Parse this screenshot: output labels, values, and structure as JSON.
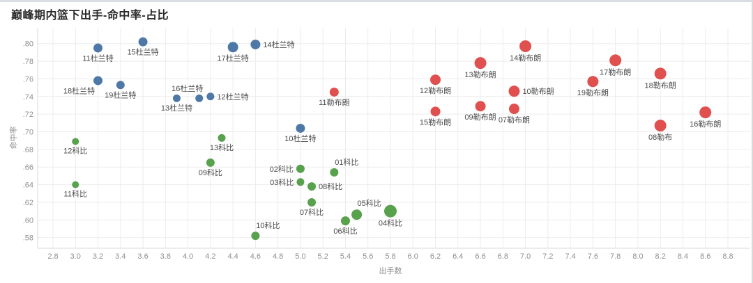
{
  "chart_data": {
    "type": "scatter",
    "title": "巅峰期内篮下出手-命中率-占比",
    "xlabel": "出手数",
    "ylabel": "命中率",
    "xlim": [
      2.7,
      8.9
    ],
    "ylim": [
      0.57,
      0.81
    ],
    "grid": true,
    "legend": "none (labels attached to each point)",
    "x_ticks": [
      "2.8",
      "3.0",
      "3.2",
      "3.4",
      "3.6",
      "3.8",
      "4.0",
      "4.2",
      "4.4",
      "4.6",
      "4.8",
      "5.0",
      "5.2",
      "5.4",
      "5.6",
      "5.8",
      "6.0",
      "6.2",
      "6.4",
      "6.6",
      "6.8",
      "7.0",
      "7.2",
      "7.4",
      "7.6",
      "7.8",
      "8.0",
      "8.2",
      "8.4",
      "8.6",
      "8.8"
    ],
    "y_ticks": [
      ".58",
      ".60",
      ".62",
      ".64",
      ".66",
      ".68",
      ".70",
      ".72",
      ".74",
      ".76",
      ".78",
      ".80"
    ],
    "colors": {
      "durant_blue": "#4e79a7",
      "lebron_red": "#e0504f",
      "kobe_green": "#58a14d",
      "grid": "#ececec",
      "axis_line": "#d8d8d8",
      "tick_text": "#8f8f8f",
      "point_label_text": "#4a4a4a",
      "title_text": "#2b2b2b"
    },
    "series": [
      {
        "name": "杜兰特",
        "color": "#4e79a7",
        "points": [
          {
            "label": "11杜兰特",
            "x": 3.2,
            "y": 0.795,
            "size": 13,
            "label_pos": "below"
          },
          {
            "label": "15杜兰特",
            "x": 3.6,
            "y": 0.802,
            "size": 13,
            "label_pos": "below"
          },
          {
            "label": "17杜兰特",
            "x": 4.4,
            "y": 0.796,
            "size": 15,
            "label_pos": "below"
          },
          {
            "label": "14杜兰特",
            "x": 4.6,
            "y": 0.799,
            "size": 14,
            "label_pos": "right"
          },
          {
            "label": "18杜兰特",
            "x": 3.2,
            "y": 0.758,
            "size": 13,
            "label_pos": "below-left"
          },
          {
            "label": "19杜兰特",
            "x": 3.4,
            "y": 0.753,
            "size": 12,
            "label_pos": "below"
          },
          {
            "label": "13杜兰特",
            "x": 3.9,
            "y": 0.738,
            "size": 11,
            "label_pos": "below"
          },
          {
            "label": "16杜兰特",
            "x": 4.1,
            "y": 0.738,
            "size": 11,
            "label_pos": "above-left"
          },
          {
            "label": "12杜兰特",
            "x": 4.2,
            "y": 0.74,
            "size": 11,
            "label_pos": "right"
          },
          {
            "label": "10杜兰特",
            "x": 5.0,
            "y": 0.704,
            "size": 13,
            "label_pos": "below"
          }
        ]
      },
      {
        "name": "勒布朗",
        "color": "#e0504f",
        "points": [
          {
            "label": "11勒布朗",
            "x": 5.3,
            "y": 0.745,
            "size": 13,
            "label_pos": "below"
          },
          {
            "label": "12勒布朗",
            "x": 6.2,
            "y": 0.759,
            "size": 15,
            "label_pos": "below"
          },
          {
            "label": "15勒布朗",
            "x": 6.2,
            "y": 0.723,
            "size": 14,
            "label_pos": "below"
          },
          {
            "label": "13勒布朗",
            "x": 6.6,
            "y": 0.778,
            "size": 17,
            "label_pos": "below"
          },
          {
            "label": "09勒布朗",
            "x": 6.6,
            "y": 0.729,
            "size": 15,
            "label_pos": "below"
          },
          {
            "label": "14勒布朗",
            "x": 7.0,
            "y": 0.797,
            "size": 17,
            "label_pos": "below"
          },
          {
            "label": "10勒布朗",
            "x": 6.9,
            "y": 0.746,
            "size": 16,
            "label_pos": "right"
          },
          {
            "label": "07勒布朗",
            "x": 6.9,
            "y": 0.726,
            "size": 15,
            "label_pos": "below"
          },
          {
            "label": "17勒布朗",
            "x": 7.8,
            "y": 0.781,
            "size": 17,
            "label_pos": "below"
          },
          {
            "label": "19勒布朗",
            "x": 7.6,
            "y": 0.757,
            "size": 16,
            "label_pos": "below"
          },
          {
            "label": "18勒布朗",
            "x": 8.2,
            "y": 0.766,
            "size": 17,
            "label_pos": "below"
          },
          {
            "label": "08勒布",
            "x": 8.2,
            "y": 0.707,
            "size": 17,
            "label_pos": "below"
          },
          {
            "label": "16勒布朗",
            "x": 8.6,
            "y": 0.722,
            "size": 17,
            "label_pos": "below"
          }
        ]
      },
      {
        "name": "科比",
        "color": "#58a14d",
        "points": [
          {
            "label": "12科比",
            "x": 3.0,
            "y": 0.689,
            "size": 10,
            "label_pos": "below"
          },
          {
            "label": "11科比",
            "x": 3.0,
            "y": 0.64,
            "size": 10,
            "label_pos": "below"
          },
          {
            "label": "13科比",
            "x": 4.3,
            "y": 0.693,
            "size": 11,
            "label_pos": "below"
          },
          {
            "label": "09科比",
            "x": 4.2,
            "y": 0.665,
            "size": 12,
            "label_pos": "below"
          },
          {
            "label": "02科比",
            "x": 5.0,
            "y": 0.658,
            "size": 12,
            "label_pos": "left"
          },
          {
            "label": "01科比",
            "x": 5.3,
            "y": 0.654,
            "size": 12,
            "label_pos": "above-right"
          },
          {
            "label": "03科比",
            "x": 5.0,
            "y": 0.643,
            "size": 11,
            "label_pos": "left"
          },
          {
            "label": "08科比",
            "x": 5.1,
            "y": 0.638,
            "size": 12,
            "label_pos": "right"
          },
          {
            "label": "07科比",
            "x": 5.1,
            "y": 0.62,
            "size": 12,
            "label_pos": "below"
          },
          {
            "label": "06科比",
            "x": 5.4,
            "y": 0.599,
            "size": 13,
            "label_pos": "below"
          },
          {
            "label": "05科比",
            "x": 5.5,
            "y": 0.606,
            "size": 15,
            "label_pos": "above-right"
          },
          {
            "label": "04科比",
            "x": 5.8,
            "y": 0.61,
            "size": 18,
            "label_pos": "below"
          },
          {
            "label": "10科比",
            "x": 4.6,
            "y": 0.582,
            "size": 12,
            "label_pos": "above-right"
          }
        ]
      }
    ]
  }
}
